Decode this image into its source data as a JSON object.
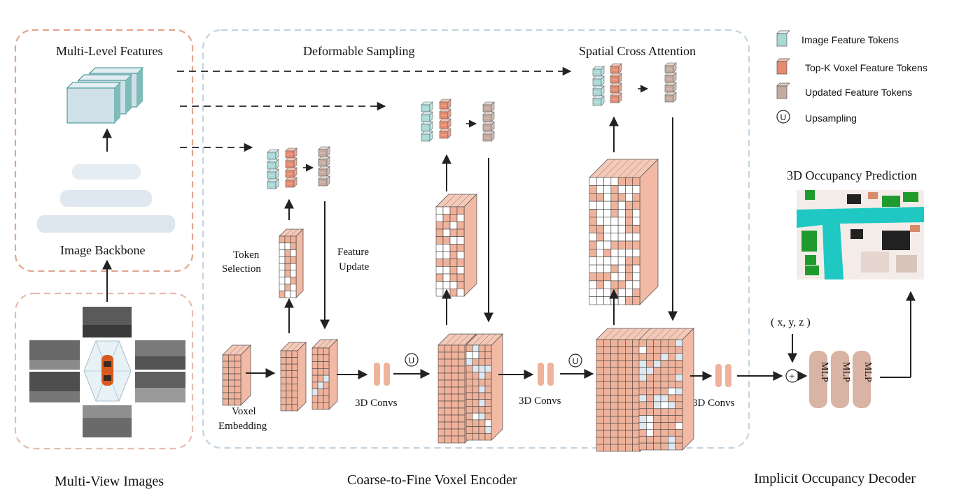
{
  "legend": {
    "image_tokens": "Image Feature Tokens",
    "topk_tokens": "Top-K Voxel Feature Tokens",
    "updated_tokens": "Updated Feature Tokens",
    "upsampling": "Upsampling",
    "upsampling_symbol": "U"
  },
  "backbone": {
    "multi_level_features": "Multi-Level Features",
    "image_backbone": "Image Backbone"
  },
  "encoder": {
    "deformable_sampling": "Deformable Sampling",
    "spatial_cross_attention": "Spatial Cross Attention",
    "token_selection_line1": "Token",
    "token_selection_line2": "Selection",
    "feature_update_line1": "Feature",
    "feature_update_line2": "Update",
    "voxel_embedding_line1": "Voxel",
    "voxel_embedding_line2": "Embedding",
    "conv_label_1": "3D Convs",
    "conv_label_2": "3D Convs",
    "conv_label_3": "3D Convs"
  },
  "decoder": {
    "prediction_title": "3D Occupancy Prediction",
    "coords": "( x, y, z )",
    "plus_symbol": "+",
    "mlp_labels": [
      "MLP",
      "MLP",
      "MLP"
    ]
  },
  "sections": {
    "multi_view_images": "Multi-View Images",
    "encoder": "Coarse-to-Fine Voxel Encoder",
    "decoder": "Implicit Occupancy Decoder"
  },
  "colors": {
    "image_token": "#a9d9d6",
    "topk_token": "#e58a6f",
    "updated_token": "#c4aa9f",
    "voxel": "#f0b29a",
    "voxel_empty": "#ffffff",
    "voxel_light": "#dfe9f1",
    "mlp": "#d9b3a4",
    "backbone_border": "#e0a58e",
    "encoder_border": "#c2d4e0",
    "images_border": "#e4bcaf",
    "feature_map": "#cfe0e8",
    "occ_road": "#20c8c4",
    "occ_veg": "#1f9b2e",
    "occ_building": "#222222",
    "occ_car": "#d98a6a"
  },
  "icons": {
    "camera_views": "camera-view-thumbnails",
    "car": "ego-car-icon",
    "occupancy": "occupancy-map-icon"
  }
}
